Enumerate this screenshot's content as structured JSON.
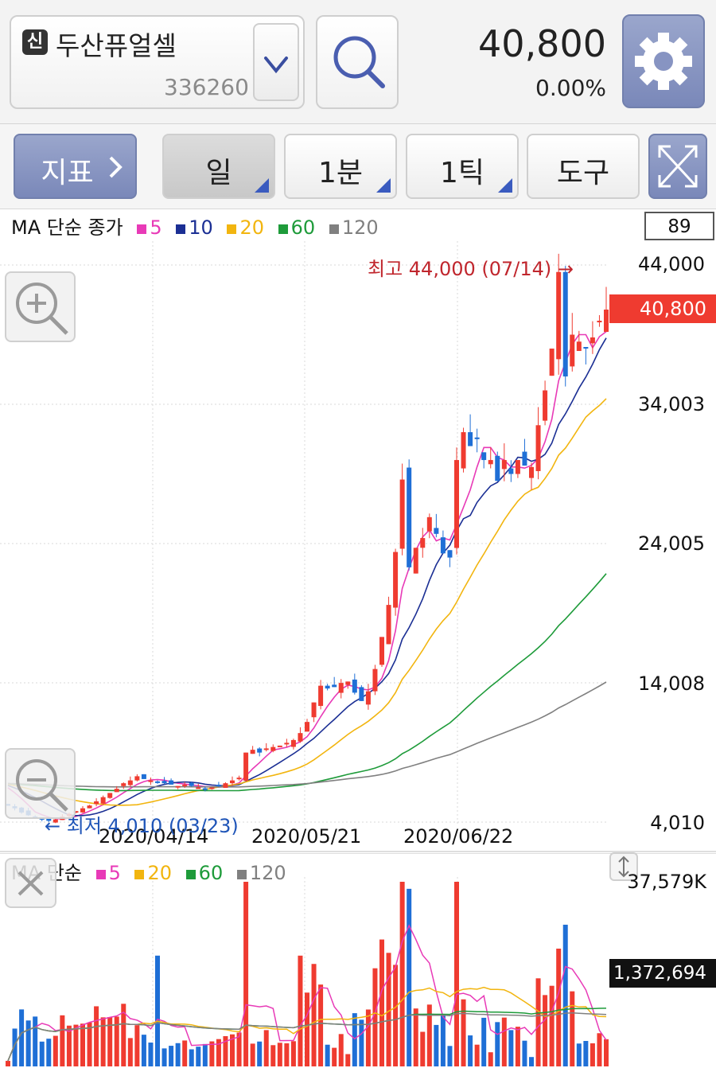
{
  "header": {
    "credit_badge": "신",
    "stock_name": "두산퓨얼셀",
    "stock_code": "336260",
    "price": "40,800",
    "change_pct": "0.00%",
    "icons": {
      "dropdown": "chevron-down-icon",
      "search": "search-icon",
      "settings": "gear-icon"
    }
  },
  "toolbar": {
    "indicator_label": "지표",
    "period_day": "일",
    "period_minute": "1분",
    "period_tick": "1틱",
    "tools_label": "도구",
    "expand_icon": "expand-icon"
  },
  "main_chart": {
    "legend_prefix": "MA 단순 종가",
    "ma": [
      {
        "label": "5",
        "color": "#e83ab7"
      },
      {
        "label": "10",
        "color": "#1b2f94"
      },
      {
        "label": "20",
        "color": "#f2b50f"
      },
      {
        "label": "60",
        "color": "#1e9b3a"
      },
      {
        "label": "120",
        "color": "#808080"
      }
    ],
    "badge": "89",
    "y_axis_labels": [
      "44,000",
      "34,003",
      "24,005",
      "14,008",
      "4,010"
    ],
    "current_price_tag": "40,800",
    "x_axis_labels": [
      "2020/04/14",
      "2020/05/21",
      "2020/06/22"
    ],
    "max_annotation": "최고 44,000 (07/14) →",
    "min_annotation": "← 최저 4,010 (03/23)"
  },
  "volume_chart": {
    "legend_prefix": "MA 단순",
    "ma": [
      {
        "label": "5",
        "color": "#e83ab7"
      },
      {
        "label": "20",
        "color": "#f2b50f"
      },
      {
        "label": "60",
        "color": "#1e9b3a"
      },
      {
        "label": "120",
        "color": "#808080"
      }
    ],
    "max_label": "37,579K",
    "current_volume_tag": "1,372,694"
  },
  "chart_data": {
    "type": "candlestick",
    "period": "daily",
    "y_range": [
      4010,
      44000
    ],
    "x_ticks": [
      "2020/04/14",
      "2020/05/21",
      "2020/06/22"
    ],
    "up_color": "#ef3b30",
    "down_color": "#1f6fd6",
    "candles_close_approx": [
      5200,
      5000,
      4700,
      4500,
      4300,
      4200,
      4100,
      4200,
      4400,
      4600,
      4800,
      5000,
      5200,
      5500,
      5800,
      6100,
      6400,
      6800,
      7000,
      7300,
      7100,
      7000,
      6900,
      6800,
      6700,
      6600,
      6700,
      6600,
      6500,
      6400,
      6500,
      6600,
      6800,
      7000,
      7200,
      9000,
      9200,
      9000,
      9300,
      9400,
      9500,
      9700,
      9900,
      10400,
      11200,
      12600,
      13800,
      13600,
      13700,
      14000,
      14100,
      13300,
      12700,
      13400,
      15000,
      17300,
      19600,
      23400,
      28600,
      22300,
      23700,
      24400,
      25900,
      24700,
      23300,
      23000,
      30000,
      32000,
      31000,
      31500,
      30000,
      30000,
      28500,
      30000,
      29000,
      30000,
      29600,
      29500,
      32500,
      35000,
      38000,
      43500,
      36000,
      39000,
      38500,
      38000,
      38800,
      40000,
      40800
    ],
    "volume_max": "37,579K",
    "last_volume": 1372694
  }
}
